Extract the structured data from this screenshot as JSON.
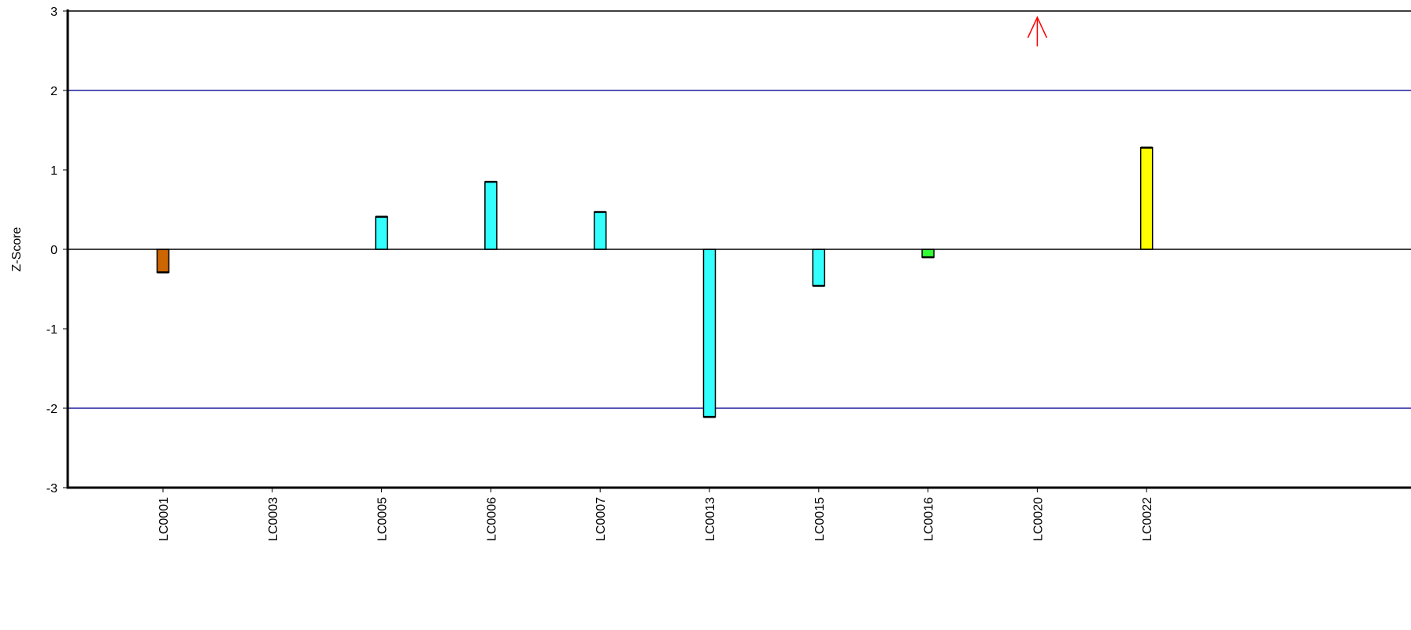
{
  "chart_data": {
    "type": "bar",
    "title": "",
    "xlabel": "",
    "ylabel": "Z-Score",
    "ylim": [
      -3,
      3
    ],
    "yticks": [
      "3",
      "2",
      "1",
      "0",
      "-1",
      "-2",
      "-3"
    ],
    "reference_lines": [
      2,
      -2
    ],
    "reference_line_color": "#1f1f9e",
    "categories": [
      "LC0001",
      "LC0003",
      "LC0005",
      "LC0006",
      "LC0007",
      "LC0013",
      "LC0015",
      "LC0016",
      "LC0020",
      "LC0022"
    ],
    "values": [
      -0.29,
      null,
      0.41,
      0.85,
      0.47,
      -2.11,
      -0.46,
      -0.1,
      null,
      1.28
    ],
    "bar_colors": [
      "#cc6600",
      null,
      "#33ffff",
      "#33ffff",
      "#33ffff",
      "#33ffff",
      "#33ffff",
      "#33ff33",
      null,
      "#ffff00"
    ],
    "off_scale_markers": [
      {
        "category": "LC0020",
        "direction": "up",
        "color": "#ff0000"
      }
    ],
    "grid": false
  }
}
